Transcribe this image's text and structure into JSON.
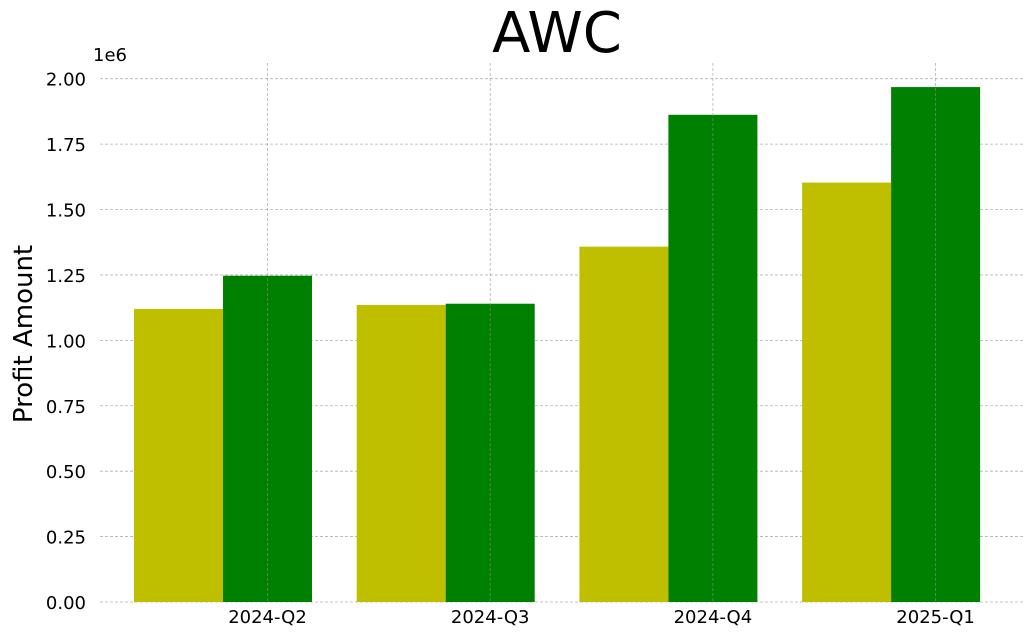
{
  "chart_data": {
    "type": "bar",
    "title": "AWC",
    "xlabel": "",
    "ylabel": "Profit Amount",
    "y_offset_label": "1e6",
    "y_scale": 1000000,
    "ylim": [
      0,
      2.06
    ],
    "yticks": [
      0.0,
      0.25,
      0.5,
      0.75,
      1.0,
      1.25,
      1.5,
      1.75,
      2.0
    ],
    "ytick_labels": [
      "0.00",
      "0.25",
      "0.50",
      "0.75",
      "1.00",
      "1.25",
      "1.50",
      "1.75",
      "2.00"
    ],
    "categories": [
      "2024-Q2",
      "2024-Q3",
      "2024-Q4",
      "2025-Q1"
    ],
    "grid": true,
    "series": [
      {
        "color": "#bfbf00",
        "values": [
          1.12,
          1.135,
          1.358,
          1.603
        ]
      },
      {
        "color": "#008000",
        "values": [
          1.247,
          1.14,
          1.862,
          1.968
        ]
      }
    ]
  }
}
